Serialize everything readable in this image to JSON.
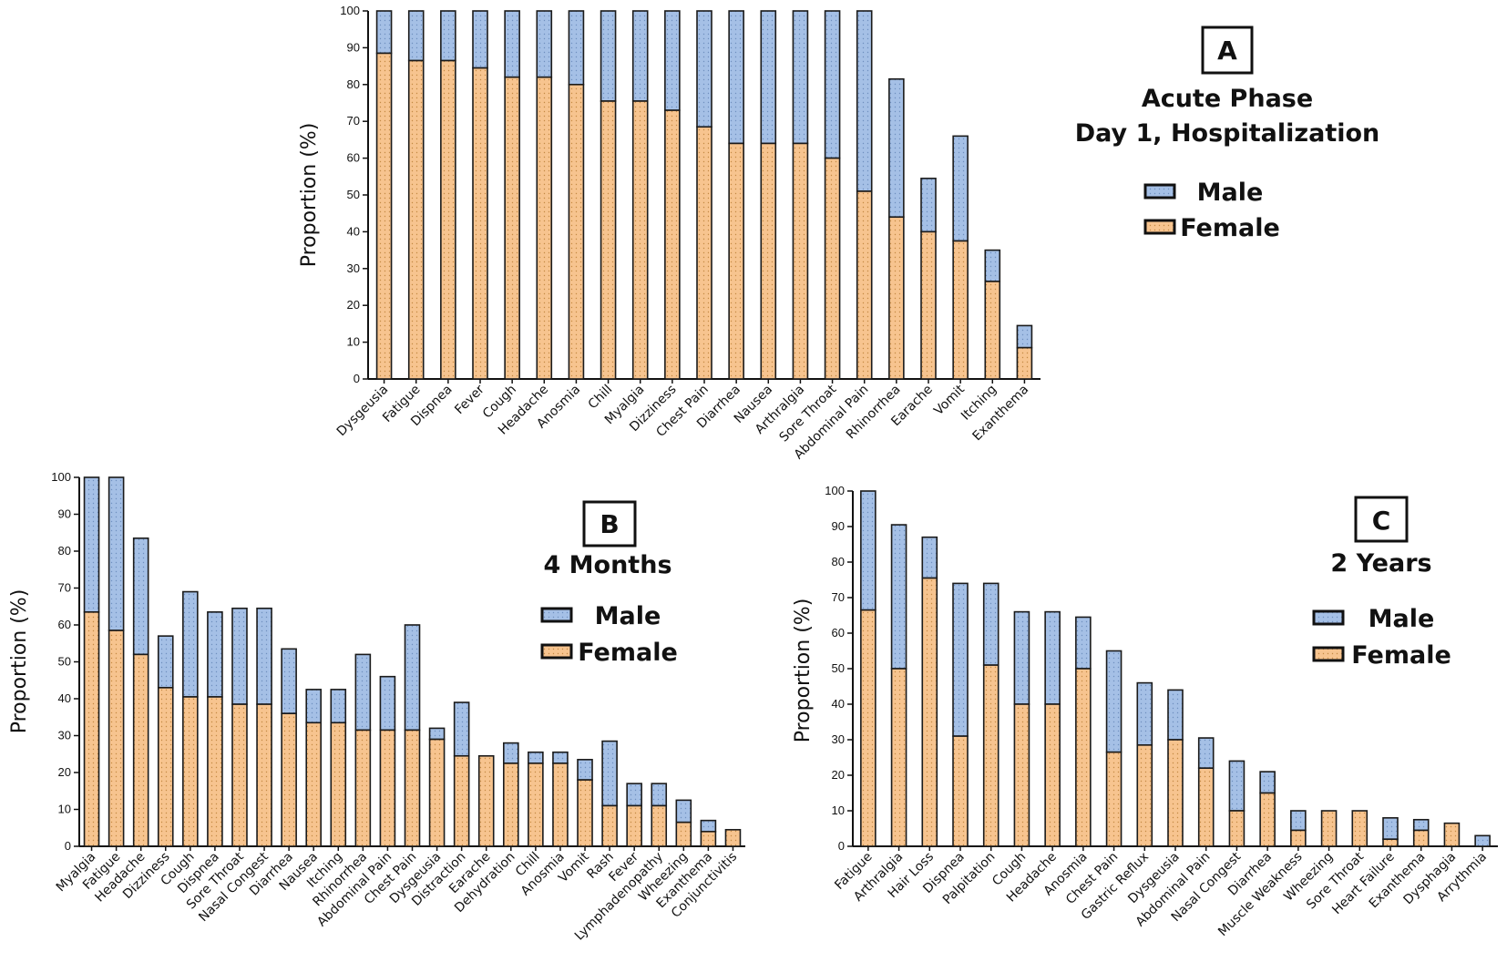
{
  "colors": {
    "female": "#f7c48f",
    "male": "#a5c0e6",
    "outline": "#1a1a1a",
    "axis": "#111111",
    "dot": "#b0874f"
  },
  "chart_data": [
    {
      "id": "A",
      "type": "bar",
      "stacked": true,
      "letter": "A",
      "title": [
        "Acute Phase",
        "Day 1, Hospitalization"
      ],
      "ylabel": "Proportion (%)",
      "ylim": [
        0,
        100
      ],
      "yticks": [
        0,
        10,
        20,
        30,
        40,
        50,
        60,
        70,
        80,
        90,
        100
      ],
      "legend": [
        "Male",
        "Female"
      ],
      "categories": [
        "Dysgeusia",
        "Fatigue",
        "Dispnea",
        "Fever",
        "Cough",
        "Headache",
        "Anosmia",
        "Chill",
        "Myalgia",
        "Dizziness",
        "Chest Pain",
        "Diarrhea",
        "Nausea",
        "Arthralgia",
        "Sore Throat",
        "Abdominal Pain",
        "Rhinorrhea",
        "Earache",
        "Vomit",
        "Itching",
        "Exanthema"
      ],
      "series": [
        {
          "name": "Female",
          "values": [
            88.5,
            86.5,
            86.5,
            84.5,
            82,
            82,
            80,
            75.5,
            75.5,
            73,
            68.5,
            64,
            64,
            64,
            60,
            51,
            44,
            40,
            37.5,
            26.5,
            8.5
          ]
        },
        {
          "name": "Male",
          "values": [
            11.5,
            13.5,
            13.5,
            15.5,
            18,
            18,
            20,
            24.5,
            24.5,
            27,
            31.5,
            36,
            36,
            36,
            40,
            49,
            37.5,
            14.5,
            28.5,
            8.5,
            6
          ]
        }
      ]
    },
    {
      "id": "B",
      "type": "bar",
      "stacked": true,
      "letter": "B",
      "title": [
        "4 Months"
      ],
      "ylabel": "Proportion (%)",
      "ylim": [
        0,
        100
      ],
      "yticks": [
        0,
        10,
        20,
        30,
        40,
        50,
        60,
        70,
        80,
        90,
        100
      ],
      "legend": [
        "Male",
        "Female"
      ],
      "categories": [
        "Myalgia",
        "Fatigue",
        "Headache",
        "Dizziness",
        "Cough",
        "Dispnea",
        "Sore Throat",
        "Nasal Congest",
        "Diarrhea",
        "Nausea",
        "Itching",
        "Rhinorrhea",
        "Abdominal Pain",
        "Chest Pain",
        "Dysgeusia",
        "Distraction",
        "Earache",
        "Dehydration",
        "Chill",
        "Anosmia",
        "Vomit",
        "Rash",
        "Fever",
        "Lymphadenopathy",
        "Wheezing",
        "Exanthema",
        "Conjunctivitis"
      ],
      "series": [
        {
          "name": "Female",
          "values": [
            63.5,
            58.5,
            52,
            43,
            40.5,
            40.5,
            38.5,
            38.5,
            36,
            33.5,
            33.5,
            31.5,
            31.5,
            31.5,
            29,
            24.5,
            24.5,
            22.5,
            22.5,
            22.5,
            18,
            11,
            11,
            11,
            6.5,
            4,
            4.5
          ]
        },
        {
          "name": "Male",
          "values": [
            36.5,
            41.5,
            31.5,
            14,
            28.5,
            23,
            26,
            26,
            17.5,
            9,
            9,
            20.5,
            14.5,
            28.5,
            3,
            14.5,
            0,
            5.5,
            3,
            3,
            5.5,
            17.5,
            6,
            6,
            6,
            3,
            0
          ]
        }
      ]
    },
    {
      "id": "C",
      "type": "bar",
      "stacked": true,
      "letter": "C",
      "title": [
        "2 Years"
      ],
      "ylabel": "Proportion (%)",
      "ylim": [
        0,
        100
      ],
      "yticks": [
        0,
        10,
        20,
        30,
        40,
        50,
        60,
        70,
        80,
        90,
        100
      ],
      "legend": [
        "Male",
        "Female"
      ],
      "categories": [
        "Fatigue",
        "Arthralgia",
        "Hair Loss",
        "Dispnea",
        "Palpitation",
        "Cough",
        "Headache",
        "Anosmia",
        "Chest Pain",
        "Gastric Reflux",
        "Dysgeusia",
        "Abdominal Pain",
        "Nasal Congest",
        "Diarrhea",
        "Muscle Weakness",
        "Wheezing",
        "Sore Throat",
        "Heart Failure",
        "Exanthema",
        "Dysphagia",
        "Arrythmia"
      ],
      "series": [
        {
          "name": "Female",
          "values": [
            66.5,
            50,
            75.5,
            31,
            51,
            40,
            40,
            50,
            26.5,
            28.5,
            30,
            22,
            10,
            15,
            4.5,
            10,
            10,
            2,
            4.5,
            6.5,
            0
          ]
        },
        {
          "name": "Male",
          "values": [
            33.5,
            40.5,
            11.5,
            43,
            23,
            26,
            26,
            14.5,
            28.5,
            17.5,
            14,
            8.5,
            14,
            6,
            5.5,
            0,
            0,
            6,
            3,
            0,
            3
          ]
        }
      ]
    }
  ]
}
